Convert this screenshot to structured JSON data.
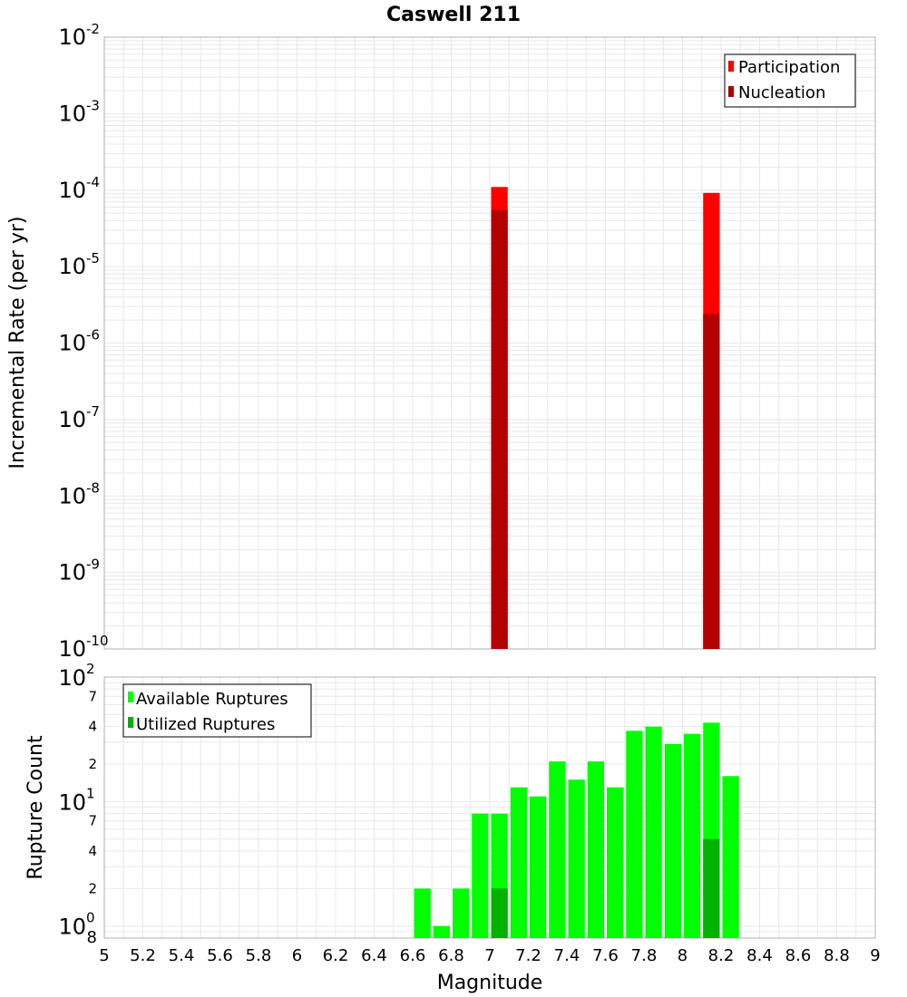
{
  "title": "Caswell 211",
  "colors": {
    "participation": "#ff0000",
    "nucleation": "#b30000",
    "available": "#00ff00",
    "utilized": "#00b300",
    "grid": "#e8e8e8"
  },
  "chart_data": [
    {
      "type": "bar",
      "name": "rate",
      "ylabel": "Incremental Rate (per yr)",
      "yscale": "log",
      "ylim": [
        1e-10,
        0.01
      ],
      "y_tick_labels": [
        {
          "base": "10",
          "exp": "-2"
        },
        {
          "base": "10",
          "exp": "-3"
        },
        {
          "base": "10",
          "exp": "-4"
        },
        {
          "base": "10",
          "exp": "-5"
        },
        {
          "base": "10",
          "exp": "-6"
        },
        {
          "base": "10",
          "exp": "-7"
        },
        {
          "base": "10",
          "exp": "-8"
        },
        {
          "base": "10",
          "exp": "-9"
        },
        {
          "base": "10",
          "exp": "-10"
        }
      ],
      "legend": [
        "Participation",
        "Nucleation"
      ],
      "legend_position": "top-right",
      "series": [
        {
          "name": "Participation",
          "x": [
            7.05,
            8.15
          ],
          "values": [
            0.00011,
            9.2e-05
          ]
        },
        {
          "name": "Nucleation",
          "x": [
            7.05,
            8.15
          ],
          "values": [
            5.5e-05,
            2.4e-06
          ]
        }
      ]
    },
    {
      "type": "bar",
      "name": "count",
      "xlabel": "Magnitude",
      "ylabel": "Rupture Count",
      "yscale": "log",
      "ylim": [
        0.8,
        100
      ],
      "xlim": [
        5,
        9
      ],
      "x_tick_labels": [
        "5",
        "5.2",
        "5.4",
        "5.6",
        "5.8",
        "6",
        "6.2",
        "6.4",
        "6.6",
        "6.8",
        "7",
        "7.2",
        "7.4",
        "7.6",
        "7.8",
        "8",
        "8.2",
        "8.4",
        "8.6",
        "8.8",
        "9"
      ],
      "y_tick_labels": {
        "decades": [
          {
            "base": "10",
            "exp": "2"
          },
          {
            "base": "10",
            "exp": "1"
          },
          {
            "base": "10",
            "exp": "0"
          }
        ],
        "minor": [
          "7",
          "4",
          "2",
          "7",
          "4",
          "2",
          "8"
        ]
      },
      "legend": [
        "Available Ruptures",
        "Utilized Ruptures"
      ],
      "legend_position": "top-left",
      "series": [
        {
          "name": "Available Ruptures",
          "x": [
            6.65,
            6.75,
            6.85,
            6.95,
            7.05,
            7.15,
            7.25,
            7.35,
            7.45,
            7.55,
            7.65,
            7.75,
            7.85,
            7.95,
            8.05,
            8.15,
            8.25
          ],
          "values": [
            2,
            1,
            2,
            8,
            8,
            13,
            11,
            21,
            15,
            21,
            13,
            37,
            40,
            29,
            35,
            43,
            16
          ]
        },
        {
          "name": "Utilized Ruptures",
          "x": [
            7.05,
            8.15
          ],
          "values": [
            2,
            5
          ]
        }
      ]
    }
  ]
}
